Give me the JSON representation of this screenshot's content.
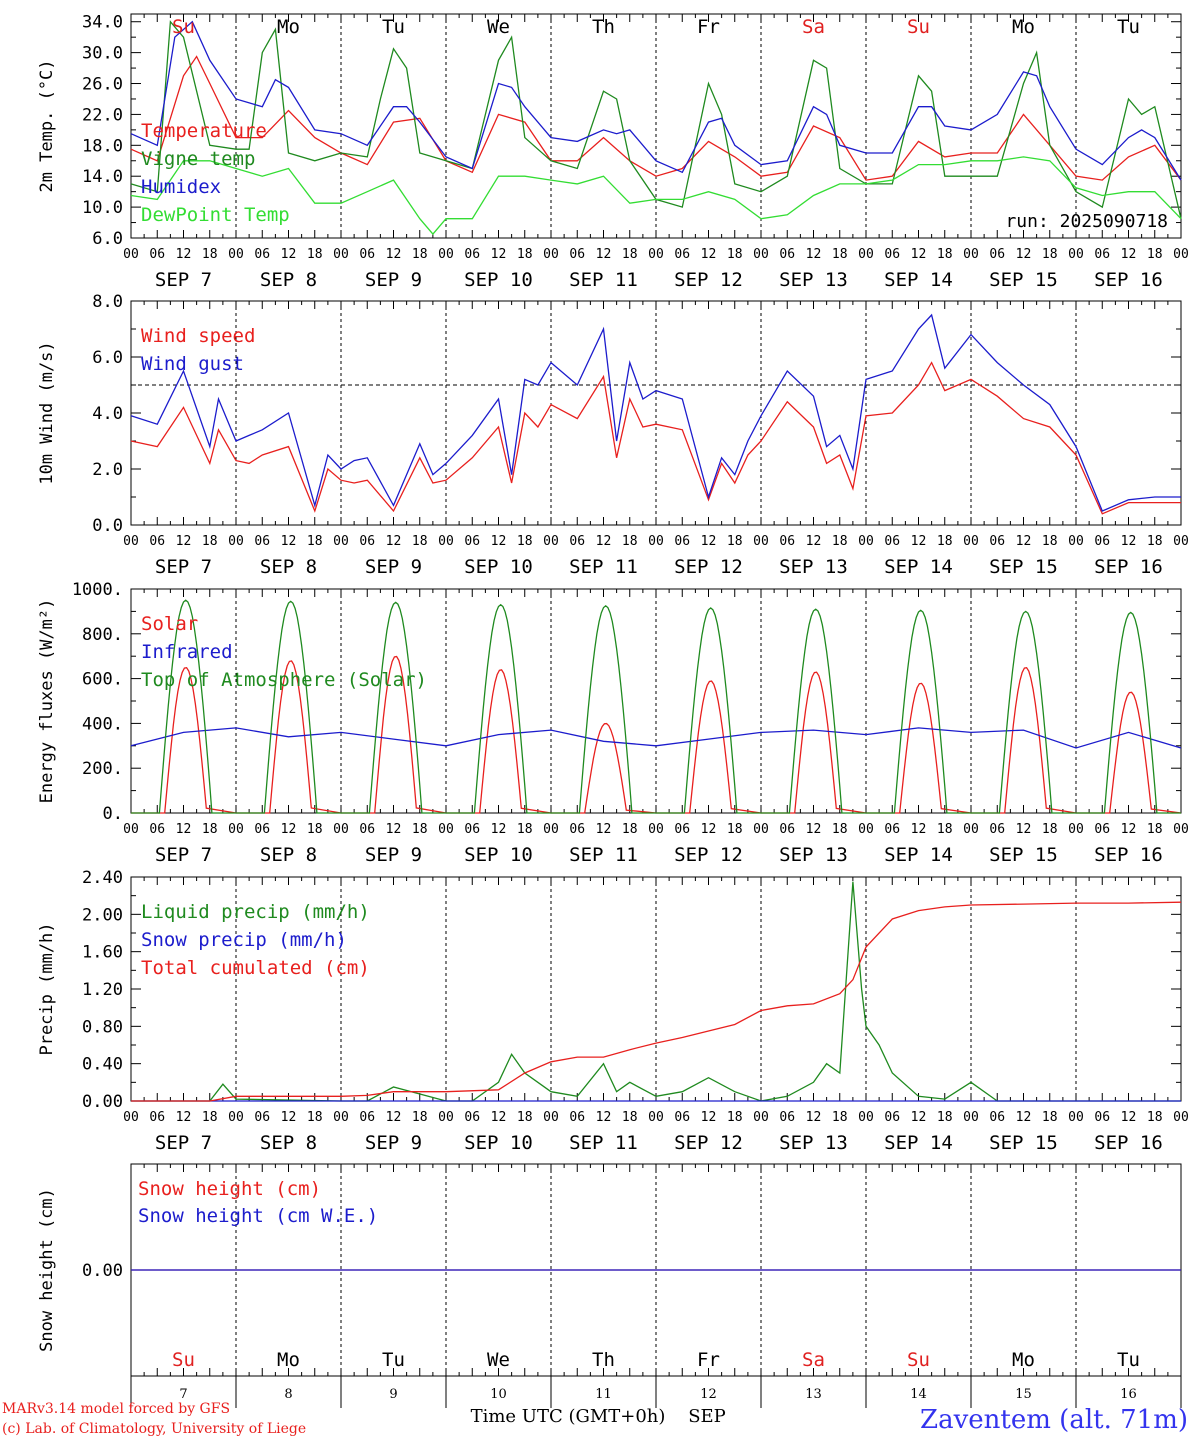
{
  "days": [
    "Su",
    "Mo",
    "Tu",
    "We",
    "Th",
    "Fr",
    "Sa",
    "Su",
    "Mo",
    "Tu"
  ],
  "day_colors": [
    "#e02020",
    "#000000",
    "#000000",
    "#000000",
    "#000000",
    "#000000",
    "#e02020",
    "#e02020",
    "#000000",
    "#000000"
  ],
  "hour_ticks": [
    "00",
    "06",
    "12",
    "18"
  ],
  "final_tick": "00",
  "date_labels": [
    "SEP  7",
    "SEP  8",
    "SEP  9",
    "SEP 10",
    "SEP 11",
    "SEP 12",
    "SEP 13",
    "SEP 14",
    "SEP 15",
    "SEP 16"
  ],
  "bottom_day_numbers": [
    "7",
    "8",
    "9",
    "10",
    "11",
    "12",
    "13",
    "14",
    "15",
    "16"
  ],
  "run_label": "run: 2025090718",
  "xlabel": "Time UTC (GMT+0h)",
  "month_label": "SEP",
  "station": "Zaventem (alt. 71m)",
  "credit_line1": "MARv3.14 model forced by GFS",
  "credit_line2": "(c) Lab. of Climatology, University of Liege",
  "colors": {
    "red": "#e8201e",
    "green": "#1f8a1f",
    "blue": "#1c1ccc",
    "lightgreen": "#33dd33",
    "station": "#3333ee"
  },
  "chart_data": [
    {
      "id": "temp",
      "type": "line",
      "ylabel": "2m Temp. (°C)",
      "ylim": [
        6,
        35
      ],
      "yticks": [
        "6.0",
        "10.0",
        "14.0",
        "18.0",
        "22.0",
        "26.0",
        "30.0",
        "34.0"
      ],
      "ytick_values": [
        6,
        10,
        14,
        18,
        22,
        26,
        30,
        34
      ],
      "x_unit": "hours since SEP 7 00 UTC",
      "series": [
        {
          "name": "Temperature",
          "color": "red",
          "x": [
            0,
            6,
            12,
            15,
            18,
            24,
            30,
            36,
            42,
            48,
            54,
            60,
            66,
            72,
            78,
            84,
            90,
            96,
            102,
            108,
            114,
            120,
            126,
            132,
            138,
            144,
            150,
            156,
            162,
            168,
            174,
            180,
            186,
            192,
            198,
            204,
            210,
            216,
            222,
            228,
            234,
            240
          ],
          "values": [
            17.5,
            16,
            27,
            29.5,
            26,
            19,
            19,
            22.5,
            19,
            17,
            15.5,
            21,
            21.5,
            16,
            14.5,
            22,
            21,
            16,
            16,
            19,
            16,
            14,
            15,
            18.5,
            16.5,
            14,
            14.5,
            20.5,
            19,
            13.5,
            14,
            18.5,
            16.5,
            17,
            17,
            22,
            18,
            14,
            13.5,
            16.5,
            18,
            13.5
          ]
        },
        {
          "name": "Vigne temp",
          "color": "green",
          "x": [
            0,
            6,
            9,
            12,
            18,
            24,
            27,
            30,
            33,
            36,
            42,
            48,
            54,
            57,
            60,
            63,
            66,
            72,
            78,
            84,
            87,
            90,
            96,
            102,
            108,
            111,
            114,
            120,
            126,
            132,
            135,
            138,
            144,
            150,
            156,
            159,
            162,
            168,
            174,
            180,
            183,
            186,
            192,
            198,
            204,
            207,
            210,
            216,
            222,
            228,
            231,
            234,
            240
          ],
          "values": [
            13,
            12,
            34,
            32,
            18,
            17.5,
            17.5,
            30,
            33,
            17,
            16,
            17,
            16.5,
            24,
            30.5,
            28,
            17,
            16,
            15,
            29,
            32,
            19,
            16,
            15,
            25,
            24,
            16,
            11,
            10,
            26,
            22,
            13,
            12,
            14,
            29,
            28,
            15,
            13,
            13,
            27,
            25,
            14,
            14,
            14,
            26,
            30,
            18,
            12,
            10,
            24,
            22,
            23,
            8.5
          ]
        },
        {
          "name": "Humidex",
          "color": "blue",
          "x": [
            0,
            6,
            10,
            14,
            18,
            24,
            30,
            33,
            36,
            42,
            48,
            54,
            60,
            63,
            66,
            72,
            78,
            84,
            87,
            90,
            96,
            102,
            108,
            111,
            114,
            120,
            126,
            132,
            135,
            138,
            144,
            150,
            156,
            159,
            162,
            168,
            174,
            180,
            183,
            186,
            192,
            198,
            204,
            207,
            210,
            216,
            222,
            228,
            231,
            234,
            240
          ],
          "values": [
            19.5,
            18,
            32,
            34,
            29,
            24,
            23,
            26.5,
            25.5,
            20,
            19.5,
            18,
            23,
            23,
            21,
            16.5,
            15,
            26,
            25.5,
            23,
            19,
            18.5,
            20,
            19.5,
            20,
            16,
            14.5,
            21,
            21.5,
            18,
            15.5,
            16,
            23,
            22,
            18,
            17,
            17,
            23,
            23,
            20.5,
            20,
            22,
            27.5,
            27,
            23,
            17.5,
            15.5,
            19,
            20,
            19,
            13.5
          ]
        },
        {
          "name": "DewPoint Temp",
          "color": "lightgreen",
          "x": [
            0,
            6,
            12,
            18,
            24,
            30,
            36,
            42,
            48,
            54,
            60,
            66,
            69,
            72,
            78,
            84,
            90,
            96,
            102,
            108,
            114,
            120,
            126,
            132,
            138,
            144,
            150,
            156,
            162,
            168,
            174,
            180,
            186,
            192,
            198,
            204,
            210,
            216,
            222,
            228,
            234,
            240
          ],
          "values": [
            11.5,
            11,
            16,
            16,
            15,
            14,
            15,
            10.5,
            10.5,
            12,
            13.5,
            8.5,
            6.5,
            8.5,
            8.5,
            14,
            14,
            13.5,
            13,
            14,
            10.5,
            11,
            11,
            12,
            11,
            8.5,
            9,
            11.5,
            13,
            13,
            13.5,
            15.5,
            15.5,
            16,
            16,
            16.5,
            16,
            12.5,
            11.5,
            12,
            12,
            8.5
          ]
        }
      ]
    },
    {
      "id": "wind",
      "type": "line",
      "ylabel": "10m Wind (m/s)",
      "ylim": [
        0,
        8
      ],
      "yticks": [
        "0.0",
        "2.0",
        "4.0",
        "6.0",
        "8.0"
      ],
      "ytick_values": [
        0,
        2,
        4,
        6,
        8
      ],
      "reference_line": 5,
      "x_unit": "hours since SEP 7 00 UTC",
      "series": [
        {
          "name": "Wind speed",
          "color": "red",
          "x": [
            0,
            6,
            12,
            18,
            20,
            24,
            27,
            30,
            36,
            42,
            45,
            48,
            51,
            54,
            60,
            66,
            69,
            72,
            78,
            84,
            87,
            90,
            93,
            96,
            102,
            108,
            111,
            114,
            117,
            120,
            126,
            132,
            135,
            138,
            141,
            144,
            150,
            156,
            159,
            162,
            165,
            168,
            174,
            180,
            183,
            186,
            192,
            198,
            204,
            210,
            216,
            222,
            228,
            234,
            240
          ],
          "values": [
            3,
            2.8,
            4.2,
            2.2,
            3.4,
            2.3,
            2.2,
            2.5,
            2.8,
            0.5,
            2,
            1.6,
            1.5,
            1.6,
            0.5,
            2.4,
            1.5,
            1.6,
            2.4,
            3.5,
            1.5,
            4,
            3.5,
            4.3,
            3.8,
            5.3,
            2.4,
            4.5,
            3.5,
            3.6,
            3.4,
            0.9,
            2.2,
            1.5,
            2.5,
            3,
            4.4,
            3.5,
            2.2,
            2.5,
            1.3,
            3.9,
            4,
            5,
            5.8,
            4.8,
            5.2,
            4.6,
            3.8,
            3.5,
            2.5,
            0.4,
            0.8,
            0.8,
            0.8
          ]
        },
        {
          "name": "Wind gust",
          "color": "blue",
          "x": [
            0,
            6,
            12,
            18,
            20,
            24,
            27,
            30,
            36,
            42,
            45,
            48,
            51,
            54,
            60,
            66,
            69,
            72,
            78,
            84,
            87,
            90,
            93,
            96,
            102,
            108,
            111,
            114,
            117,
            120,
            126,
            132,
            135,
            138,
            141,
            144,
            150,
            156,
            159,
            162,
            165,
            168,
            174,
            180,
            183,
            186,
            192,
            198,
            204,
            210,
            216,
            222,
            228,
            234,
            240
          ],
          "values": [
            3.9,
            3.6,
            5.5,
            2.8,
            4.5,
            3,
            3.2,
            3.4,
            4,
            0.7,
            2.5,
            2,
            2.3,
            2.4,
            0.7,
            2.9,
            1.8,
            2.2,
            3.2,
            4.5,
            1.8,
            5.2,
            5,
            5.8,
            5,
            7,
            3,
            5.8,
            4.5,
            4.8,
            4.5,
            1,
            2.4,
            1.8,
            3,
            3.9,
            5.5,
            4.6,
            2.8,
            3.2,
            2,
            5.2,
            5.5,
            7,
            7.5,
            5.6,
            6.8,
            5.8,
            5,
            4.3,
            2.8,
            0.5,
            0.9,
            1,
            1
          ]
        }
      ]
    },
    {
      "id": "energy",
      "type": "line",
      "ylabel": "Energy fluxes (W/m²)",
      "ylim": [
        0,
        1000
      ],
      "yticks": [
        "0.",
        "200.",
        "400.",
        "600.",
        "800.",
        "1000."
      ],
      "ytick_values": [
        0,
        200,
        400,
        600,
        800,
        1000
      ],
      "x_unit": "hours since SEP 7 00 UTC",
      "series": [
        {
          "name": "Solar",
          "color": "red",
          "peak_values": [
            650,
            680,
            700,
            640,
            400,
            590,
            630,
            580,
            650,
            540
          ]
        },
        {
          "name": "Infrared",
          "color": "blue",
          "x": [
            0,
            12,
            24,
            36,
            48,
            60,
            72,
            84,
            96,
            108,
            120,
            132,
            144,
            156,
            168,
            180,
            192,
            204,
            216,
            228,
            240
          ],
          "values": [
            300,
            360,
            380,
            340,
            360,
            330,
            300,
            350,
            370,
            320,
            300,
            330,
            360,
            370,
            350,
            380,
            360,
            370,
            290,
            360,
            290
          ]
        },
        {
          "name": "Top of Atmosphere (Solar)",
          "color": "green",
          "peak_values": [
            950,
            945,
            940,
            930,
            925,
            915,
            910,
            905,
            900,
            895
          ]
        }
      ]
    },
    {
      "id": "precip",
      "type": "line",
      "ylabel": "Precip (mm/h)",
      "ylim": [
        0,
        2.4
      ],
      "yticks": [
        "0.00",
        "0.40",
        "0.80",
        "1.20",
        "1.60",
        "2.00",
        "2.40"
      ],
      "ytick_values": [
        0,
        0.4,
        0.8,
        1.2,
        1.6,
        2.0,
        2.4
      ],
      "x_unit": "hours since SEP 7 00 UTC",
      "series": [
        {
          "name": "Liquid precip (mm/h)",
          "color": "green",
          "x": [
            0,
            18,
            21,
            24,
            48,
            54,
            60,
            72,
            78,
            84,
            87,
            90,
            96,
            102,
            108,
            111,
            114,
            120,
            126,
            132,
            138,
            144,
            150,
            156,
            159,
            162,
            165,
            167,
            168,
            171,
            174,
            180,
            186,
            192,
            198,
            204,
            210,
            240
          ],
          "values": [
            0,
            0,
            0.18,
            0.02,
            0,
            0,
            0.15,
            0,
            0,
            0.2,
            0.5,
            0.3,
            0.1,
            0.05,
            0.4,
            0.1,
            0.2,
            0.05,
            0.1,
            0.25,
            0.1,
            0,
            0.05,
            0.2,
            0.4,
            0.3,
            2.35,
            1.2,
            0.8,
            0.6,
            0.3,
            0.05,
            0.02,
            0.2,
            0,
            0,
            0,
            0
          ]
        },
        {
          "name": "Snow precip (mm/h)",
          "color": "blue",
          "x": [
            0,
            240
          ],
          "values": [
            0,
            0
          ]
        },
        {
          "name": "Total cumulated (cm)",
          "color": "red",
          "x": [
            0,
            18,
            24,
            48,
            54,
            60,
            72,
            84,
            90,
            96,
            102,
            108,
            114,
            120,
            126,
            132,
            138,
            144,
            150,
            156,
            162,
            165,
            168,
            174,
            180,
            186,
            192,
            204,
            216,
            228,
            240
          ],
          "values": [
            0,
            0,
            0.05,
            0.05,
            0.06,
            0.1,
            0.1,
            0.12,
            0.3,
            0.42,
            0.47,
            0.47,
            0.55,
            0.62,
            0.68,
            0.75,
            0.82,
            0.97,
            1.02,
            1.04,
            1.15,
            1.3,
            1.65,
            1.95,
            2.04,
            2.08,
            2.1,
            2.11,
            2.12,
            2.12,
            2.13
          ]
        }
      ]
    },
    {
      "id": "snow",
      "type": "line",
      "ylabel": "Snow height (cm)",
      "ylim": [
        -1,
        1
      ],
      "yticks": [
        "0.00"
      ],
      "ytick_values": [
        0
      ],
      "x_unit": "hours since SEP 7 00 UTC",
      "series": [
        {
          "name": "Snow height (cm)",
          "color": "red",
          "x": [
            0,
            240
          ],
          "values": [
            0,
            0
          ]
        },
        {
          "name": "Snow height (cm W.E.)",
          "color": "blue",
          "x": [
            0,
            240
          ],
          "values": [
            0,
            0
          ]
        }
      ]
    }
  ]
}
